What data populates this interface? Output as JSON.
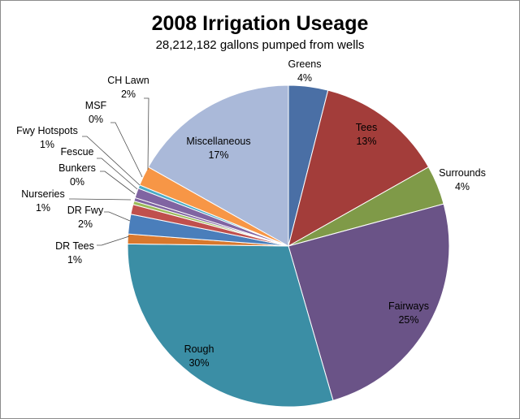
{
  "chart_data": {
    "type": "pie",
    "title": "2008 Irrigation Useage",
    "subtitle": "28,212,182 gallons  pumped  from wells",
    "slices": [
      {
        "name": "Greens",
        "value": 4,
        "label": "4%",
        "color": "#4a6fa5"
      },
      {
        "name": "Tees",
        "value": 13,
        "label": "13%",
        "color": "#a33d3a"
      },
      {
        "name": "Surrounds",
        "value": 4,
        "label": "4%",
        "color": "#7f9a48"
      },
      {
        "name": "Fairways",
        "value": 25,
        "label": "25%",
        "color": "#6a5387"
      },
      {
        "name": "Rough",
        "value": 30,
        "label": "30%",
        "color": "#3b8ea5"
      },
      {
        "name": "DR Tees",
        "value": 1,
        "label": "1%",
        "color": "#d9782d"
      },
      {
        "name": "DR Fwy",
        "value": 2,
        "label": "2%",
        "color": "#4a7ebb"
      },
      {
        "name": "Nurseries",
        "value": 1,
        "label": "1%",
        "color": "#c0504d"
      },
      {
        "name": "Bunkers",
        "value": 0,
        "label": "0%",
        "color": "#9bbb59"
      },
      {
        "name": "Fescue",
        "value": 0,
        "label": "",
        "color": "#8064a2"
      },
      {
        "name": "Fwy Hotspots",
        "value": 1,
        "label": "1%",
        "color": "#8064a2"
      },
      {
        "name": "MSF",
        "value": 0,
        "label": "0%",
        "color": "#4bacc6"
      },
      {
        "name": "CH Lawn",
        "value": 2,
        "label": "2%",
        "color": "#f79646"
      },
      {
        "name": "Miscellaneous",
        "value": 17,
        "label": "17%",
        "color": "#aab9d9"
      }
    ]
  }
}
